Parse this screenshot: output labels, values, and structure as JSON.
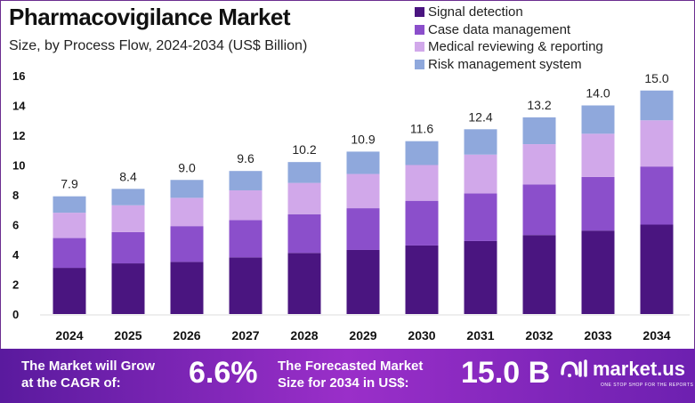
{
  "chart_data": {
    "type": "bar",
    "stacked": true,
    "title": "Pharmacovigilance Market",
    "subtitle": "Size, by Process Flow, 2024-2034 (US$ Billion)",
    "categories": [
      "2024",
      "2025",
      "2026",
      "2027",
      "2028",
      "2029",
      "2030",
      "2031",
      "2032",
      "2033",
      "2034"
    ],
    "totals": [
      "7.9",
      "8.4",
      "9.0",
      "9.6",
      "10.2",
      "10.9",
      "11.6",
      "12.4",
      "13.2",
      "14.0",
      "15.0"
    ],
    "series": [
      {
        "name": "Signal detection",
        "color": "#4a1580",
        "values": [
          3.1,
          3.4,
          3.5,
          3.8,
          4.1,
          4.3,
          4.6,
          4.9,
          5.3,
          5.6,
          6.0
        ]
      },
      {
        "name": "Case data management",
        "color": "#8b4fcb",
        "values": [
          2.0,
          2.1,
          2.4,
          2.5,
          2.6,
          2.8,
          3.0,
          3.2,
          3.4,
          3.6,
          3.9
        ]
      },
      {
        "name": "Medical reviewing & reporting",
        "color": "#d1a8ea",
        "values": [
          1.7,
          1.8,
          1.9,
          2.0,
          2.1,
          2.3,
          2.4,
          2.6,
          2.7,
          2.9,
          3.1
        ]
      },
      {
        "name": "Risk management system",
        "color": "#8fa8dc",
        "values": [
          1.1,
          1.1,
          1.2,
          1.3,
          1.4,
          1.5,
          1.6,
          1.7,
          1.8,
          1.9,
          2.0
        ]
      }
    ],
    "yticks": [
      "0",
      "2",
      "4",
      "6",
      "8",
      "10",
      "12",
      "14",
      "16"
    ],
    "ylim": [
      0,
      16
    ],
    "grid": false,
    "legend": "top-right"
  },
  "banner": {
    "cagr_text_1": "The Market will Grow",
    "cagr_text_2": "at the CAGR of:",
    "cagr_value": "6.6%",
    "forecast_text_1": "The Forecasted Market",
    "forecast_text_2": "Size for 2034 in US$:",
    "forecast_value": "15.0 B",
    "logo": "market.us",
    "tagline": "ONE STOP SHOP FOR THE REPORTS"
  }
}
